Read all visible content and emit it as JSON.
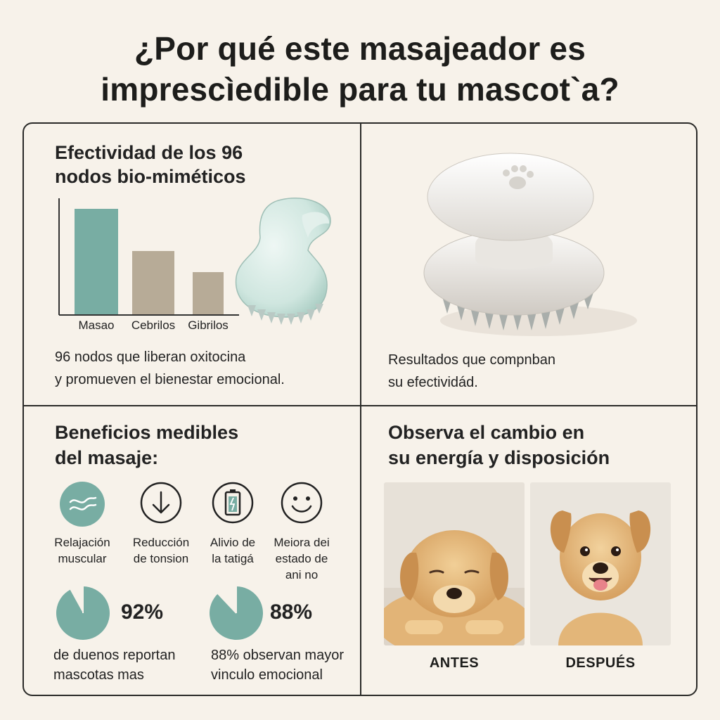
{
  "title": {
    "line1": "¿Por qué este masajeador es",
    "line2": "imprescìedible para tu mascot`a?"
  },
  "panel1": {
    "heading_line1": "Efectividad de los 96",
    "heading_line2": "nodos bio-miméticos",
    "body_line1": "96 nodos que liberan oxitocina",
    "body_line2": "y promueven el bienestar emocional."
  },
  "chart_data": {
    "type": "bar",
    "categories": [
      "Masao",
      "Cebrilos",
      "Gibrilos"
    ],
    "values": [
      100,
      60,
      40
    ],
    "colors": [
      "#78ada3",
      "#b7ab97",
      "#b7ab97"
    ]
  },
  "panel2": {
    "body_line1": "Resultados que compnban",
    "body_line2": "su efectividád."
  },
  "panel3": {
    "heading_line1": "Beneficios medibles",
    "heading_line2": "del masaje:",
    "icons": [
      {
        "icon": "wave-icon",
        "line1": "Relajación",
        "line2": "muscular",
        "line3": ""
      },
      {
        "icon": "arrow-down-icon",
        "line1": "Reducción",
        "line2": "de tonsion",
        "line3": ""
      },
      {
        "icon": "battery-icon",
        "line1": "Alivio de",
        "line2": "la tatigá",
        "line3": ""
      },
      {
        "icon": "smiley-icon",
        "line1": "Meiora dei",
        "line2": "estado de",
        "line3": "ani no"
      }
    ],
    "stats": [
      {
        "percent": "92%",
        "fraction": 0.92,
        "line1": "de duenos reportan",
        "line2": "mascotas mas"
      },
      {
        "percent": "88%",
        "fraction": 0.88,
        "line1": "88% observan mayor",
        "line2": "vinculo emocional"
      }
    ],
    "accent": "#78ada3"
  },
  "panel4": {
    "heading_line1": "Observa el cambio en",
    "heading_line2": "su energía y disposición",
    "before_label": "ANTES",
    "after_label": "DESPUÉS"
  }
}
